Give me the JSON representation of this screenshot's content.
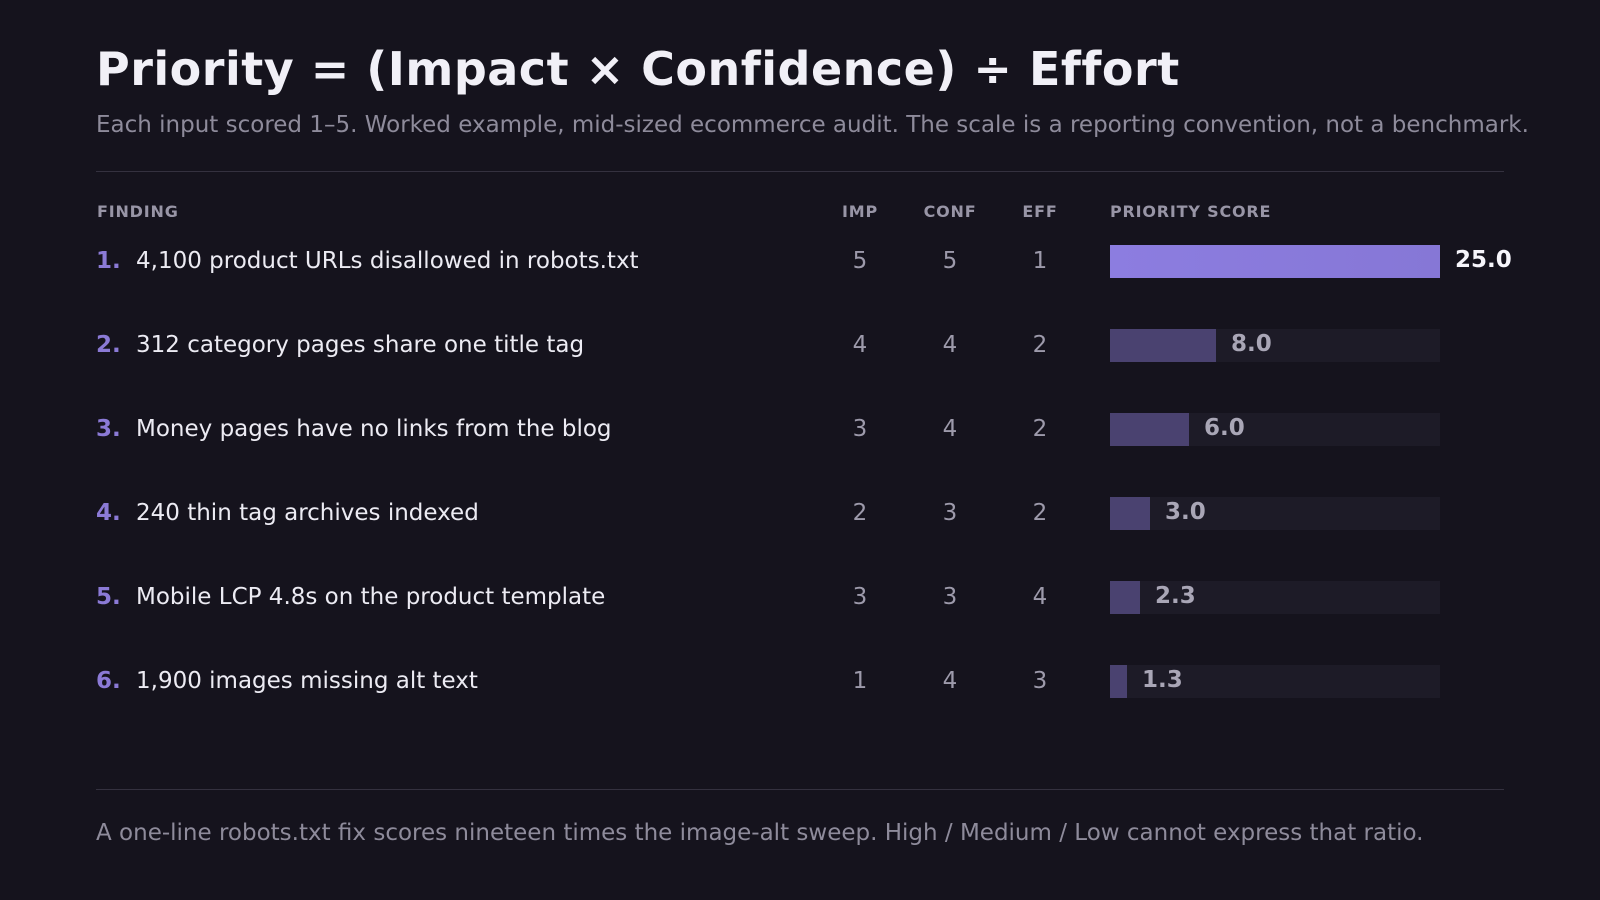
{
  "title": "Priority = (Impact × Confidence) ÷ Effort",
  "subtitle": "Each input scored 1–5. Worked example, mid-sized ecommerce audit. The scale is a reporting convention, not a benchmark.",
  "columns": {
    "finding": "FINDING",
    "impact": "IMP",
    "confidence": "CONF",
    "effort": "EFF",
    "score": "PRIORITY SCORE"
  },
  "footnote": "A one-line robots.txt fix scores nineteen times the image-alt sweep. High / Medium / Low cannot express that ratio.",
  "colors": {
    "top_bar": "#8677d6",
    "other_bar": "#4a4270",
    "track": "#1d1b27",
    "number": "#8b7ad6"
  },
  "chart_data": {
    "type": "bar",
    "orientation": "horizontal",
    "xlim": [
      0,
      25
    ],
    "grid": false,
    "categories": [
      "4,100 product URLs disallowed in robots.txt",
      "312 category pages share one title tag",
      "Money pages have no links from the blog",
      "240 thin tag archives indexed",
      "Mobile LCP 4.8s on the product template",
      "1,900 images missing alt text"
    ],
    "rows": [
      {
        "rank": "1.",
        "finding": "4,100 product URLs disallowed in robots.txt",
        "imp": "5",
        "conf": "5",
        "eff": "1",
        "score": 25.0,
        "score_label": "25.0"
      },
      {
        "rank": "2.",
        "finding": "312 category pages share one title tag",
        "imp": "4",
        "conf": "4",
        "eff": "2",
        "score": 8.0,
        "score_label": "8.0"
      },
      {
        "rank": "3.",
        "finding": "Money pages have no links from the blog",
        "imp": "3",
        "conf": "4",
        "eff": "2",
        "score": 6.0,
        "score_label": "6.0"
      },
      {
        "rank": "4.",
        "finding": "240 thin tag archives indexed",
        "imp": "2",
        "conf": "3",
        "eff": "2",
        "score": 3.0,
        "score_label": "3.0"
      },
      {
        "rank": "5.",
        "finding": "Mobile LCP 4.8s on the product template",
        "imp": "3",
        "conf": "3",
        "eff": "4",
        "score": 2.3,
        "score_label": "2.3"
      },
      {
        "rank": "6.",
        "finding": "1,900 images missing alt text",
        "imp": "1",
        "conf": "4",
        "eff": "3",
        "score": 1.3,
        "score_label": "1.3"
      }
    ]
  }
}
